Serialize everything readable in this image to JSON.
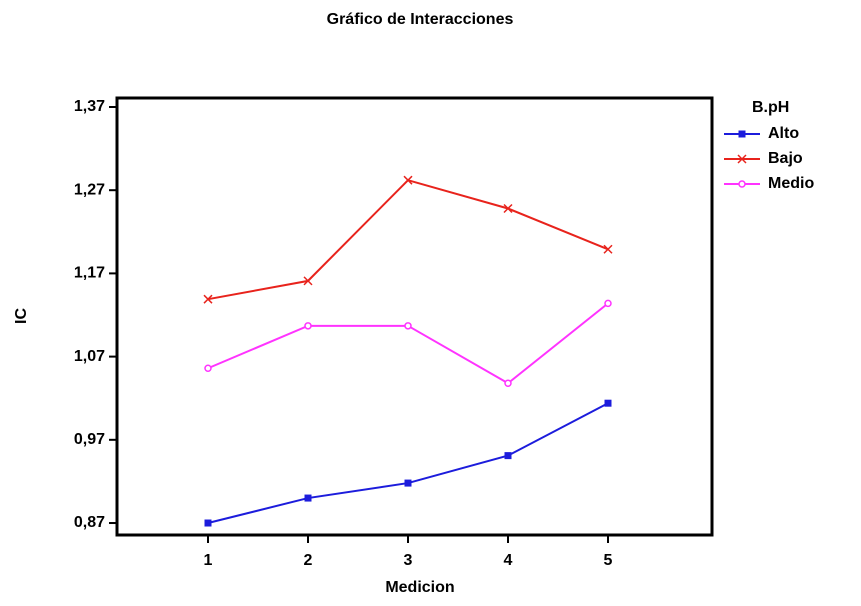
{
  "chart_data": {
    "type": "line",
    "title": "Gráfico de Interacciones",
    "x_label": "Medicion",
    "y_label": "IC",
    "legend_title": "B.pH",
    "legend": "right",
    "x": [
      1,
      2,
      3,
      4,
      5
    ],
    "series": [
      {
        "name": "Alto",
        "color": "#1c1cdc",
        "marker": "square",
        "values": [
          0.87,
          0.9,
          0.918,
          0.951,
          1.014
        ]
      },
      {
        "name": "Bajo",
        "color": "#e8231c",
        "marker": "x",
        "values": [
          1.139,
          1.161,
          1.282,
          1.248,
          1.199
        ]
      },
      {
        "name": "Medio",
        "color": "#ff33ff",
        "marker": "circle",
        "values": [
          1.056,
          1.107,
          1.107,
          1.038,
          1.134
        ]
      }
    ],
    "xlim": [
      0.09,
      6.04
    ],
    "xticks": [
      1,
      2,
      3,
      4,
      5
    ],
    "ylim": [
      0.8556,
      1.3808
    ],
    "yticks": [
      {
        "value": 0.87,
        "label": "0,87"
      },
      {
        "value": 0.97,
        "label": "0,97"
      },
      {
        "value": 1.07,
        "label": "1,07"
      },
      {
        "value": 1.17,
        "label": "1,17"
      },
      {
        "value": 1.27,
        "label": "1,27"
      },
      {
        "value": 1.37,
        "label": "1,37"
      }
    ]
  }
}
